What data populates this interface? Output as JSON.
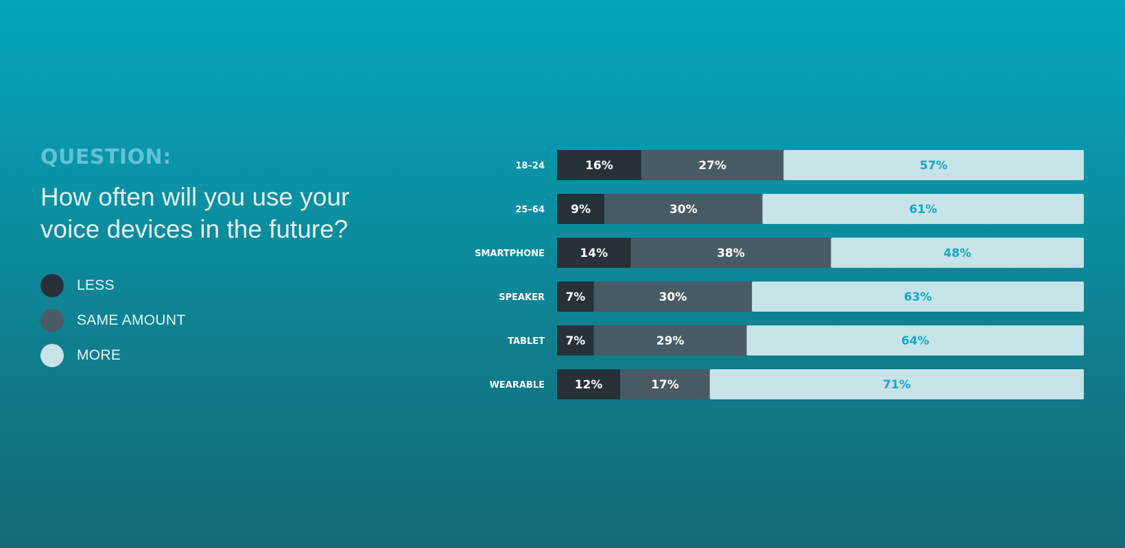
{
  "question": {
    "label": "QUESTION:",
    "text": "How often will you use your voice devices in the future?"
  },
  "colors": {
    "less": "#263238",
    "same": "#495b64",
    "more": "#c6e3e7",
    "more_text": "#12a8c2",
    "dark_text": "#ffffff"
  },
  "chart_data": {
    "type": "bar",
    "orientation": "horizontal",
    "stacked": true,
    "categories": [
      "18–24",
      "25–64",
      "SMARTPHONE",
      "SPEAKER",
      "TABLET",
      "WEARABLE"
    ],
    "series": [
      {
        "name": "LESS",
        "values": [
          16,
          9,
          14,
          7,
          7,
          12
        ],
        "labels": [
          "16%",
          "9%",
          "14%",
          "7%",
          "7%",
          "12%"
        ]
      },
      {
        "name": "SAME AMOUNT",
        "values": [
          27,
          30,
          38,
          30,
          29,
          17
        ],
        "labels": [
          "27%",
          "30%",
          "38%",
          "30%",
          "29%",
          "17%"
        ]
      },
      {
        "name": "MORE",
        "values": [
          57,
          61,
          48,
          63,
          64,
          71
        ],
        "labels": [
          "57%",
          "61%",
          "48%",
          "63%",
          "64%",
          "71%"
        ]
      }
    ],
    "xlim": [
      0,
      100
    ],
    "legend_position": "left"
  }
}
